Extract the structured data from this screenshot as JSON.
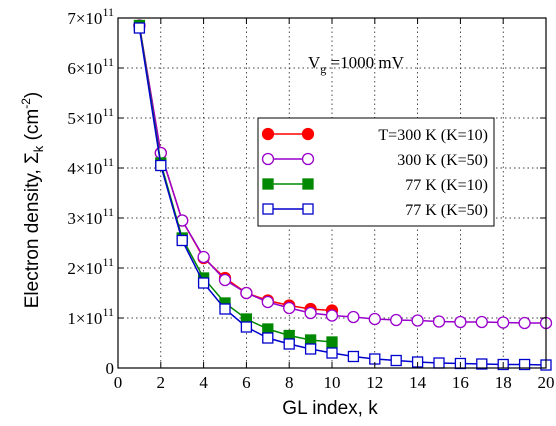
{
  "chart_data": {
    "type": "line",
    "xlabel": "GL index, k",
    "ylabel": "Electron density, Σ",
    "ylabel_sub": "k",
    "ylabel_unit": " (cm",
    "ylabel_exp": "-2",
    "ylabel_close": ")",
    "xlim": [
      0,
      20
    ],
    "ylim": [
      0,
      7
    ],
    "y_multiplier_base": "×10",
    "y_multiplier_exp": "11",
    "xticks": [
      0,
      2,
      4,
      6,
      8,
      10,
      12,
      14,
      16,
      18,
      20
    ],
    "yticks": [
      0,
      1,
      2,
      3,
      4,
      5,
      6,
      7
    ],
    "grid": true,
    "annotation": {
      "main": "V",
      "sub": "g",
      "rest": " =1000 mV"
    },
    "legend_position": "center-right",
    "series": [
      {
        "name": "T=300 K (K=10)",
        "color": "#ff0000",
        "marker": "filled-circle",
        "x": [
          1,
          2,
          3,
          4,
          5,
          6,
          7,
          8,
          9,
          10
        ],
        "y": [
          6.85,
          4.3,
          2.95,
          2.2,
          1.8,
          1.5,
          1.35,
          1.25,
          1.18,
          1.15
        ]
      },
      {
        "name": "300 K (K=50)",
        "color": "#9900cc",
        "marker": "open-circle",
        "x": [
          1,
          2,
          3,
          4,
          5,
          6,
          7,
          8,
          9,
          10,
          11,
          12,
          13,
          14,
          15,
          16,
          17,
          18,
          19,
          20
        ],
        "y": [
          6.85,
          4.3,
          2.95,
          2.22,
          1.76,
          1.5,
          1.32,
          1.2,
          1.1,
          1.05,
          1.02,
          0.98,
          0.96,
          0.95,
          0.93,
          0.92,
          0.92,
          0.91,
          0.9,
          0.9
        ]
      },
      {
        "name": "77 K (K=10)",
        "color": "#008800",
        "marker": "filled-square",
        "x": [
          1,
          2,
          3,
          4,
          5,
          6,
          7,
          8,
          9,
          10
        ],
        "y": [
          6.85,
          4.1,
          2.6,
          1.8,
          1.3,
          0.98,
          0.78,
          0.65,
          0.56,
          0.52
        ]
      },
      {
        "name": "77 K (K=50)",
        "color": "#0000cc",
        "marker": "open-square",
        "x": [
          1,
          2,
          3,
          4,
          5,
          6,
          7,
          8,
          9,
          10,
          11,
          12,
          13,
          14,
          15,
          16,
          17,
          18,
          19,
          20
        ],
        "y": [
          6.8,
          4.05,
          2.55,
          1.7,
          1.18,
          0.82,
          0.6,
          0.48,
          0.38,
          0.3,
          0.23,
          0.18,
          0.15,
          0.12,
          0.1,
          0.09,
          0.08,
          0.07,
          0.07,
          0.06
        ]
      }
    ]
  }
}
